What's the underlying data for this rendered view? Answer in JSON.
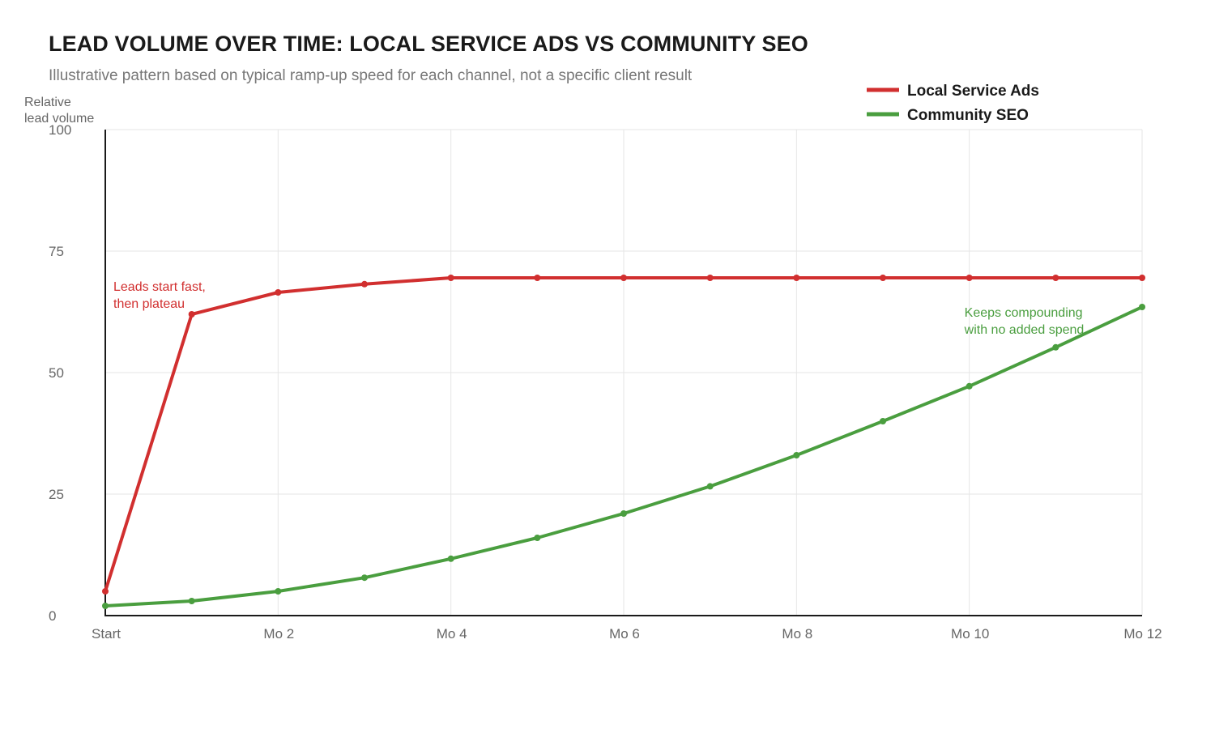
{
  "chart_data": {
    "type": "line",
    "title": "LEAD VOLUME OVER TIME: LOCAL SERVICE ADS VS COMMUNITY SEO",
    "subtitle": "Illustrative pattern based on typical ramp-up speed for each channel, not a specific client result",
    "ylabel": [
      "Relative",
      "lead volume"
    ],
    "xlabel": "",
    "x": [
      0,
      1,
      2,
      3,
      4,
      5,
      6,
      7,
      8,
      9,
      10,
      11,
      12
    ],
    "x_ticks": [
      {
        "value": 0,
        "label": "Start"
      },
      {
        "value": 2,
        "label": "Mo 2"
      },
      {
        "value": 4,
        "label": "Mo 4"
      },
      {
        "value": 6,
        "label": "Mo 6"
      },
      {
        "value": 8,
        "label": "Mo 8"
      },
      {
        "value": 10,
        "label": "Mo 10"
      },
      {
        "value": 12,
        "label": "Mo 12"
      }
    ],
    "y_ticks": [
      0,
      25,
      50,
      75,
      100
    ],
    "xlim": [
      0,
      12
    ],
    "ylim": [
      0,
      100
    ],
    "grid": true,
    "legend_position": "top-right",
    "series": [
      {
        "name": "Local Service Ads",
        "color": "#d12f2f",
        "values": [
          5,
          62,
          66.5,
          68.2,
          69.5,
          69.5,
          69.5,
          69.5,
          69.5,
          69.5,
          69.5,
          69.5,
          69.5
        ]
      },
      {
        "name": "Community SEO",
        "color": "#4a9e3f",
        "values": [
          2,
          3,
          5,
          7.8,
          11.7,
          16,
          21,
          26.6,
          33,
          40,
          47.2,
          55.2,
          63.5
        ]
      }
    ],
    "annotations": [
      {
        "series": 0,
        "lines": [
          "Leads start fast,",
          "then plateau"
        ]
      },
      {
        "series": 1,
        "lines": [
          "Keeps compounding",
          "with no added spend"
        ]
      }
    ]
  }
}
